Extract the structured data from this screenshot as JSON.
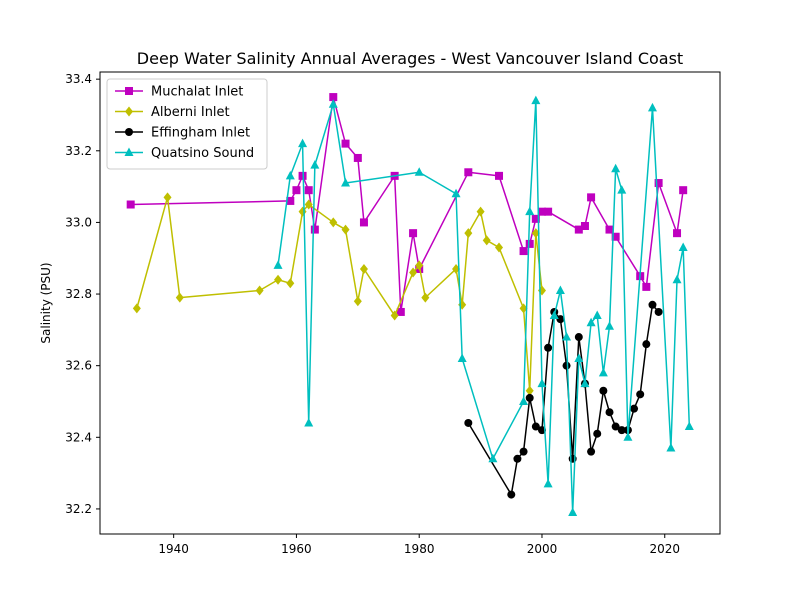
{
  "chart_data": {
    "type": "line",
    "title": "Deep Water Salinity Annual Averages - West Vancouver Island Coast",
    "xlabel": "",
    "ylabel": "Salinity (PSU)",
    "xlim": [
      1928,
      2029
    ],
    "ylim": [
      32.13,
      33.42
    ],
    "xticks": [
      1940,
      1960,
      1980,
      2000,
      2020
    ],
    "yticks": [
      32.2,
      32.4,
      32.6,
      32.8,
      33.0,
      33.2,
      33.4
    ],
    "ytick_labels": [
      "32.2",
      "32.4",
      "32.6",
      "32.8",
      "33.0",
      "33.2",
      "33.4"
    ],
    "grid": false,
    "legend_position": "top-left",
    "series": [
      {
        "name": "Muchalat Inlet",
        "color": "#bf00bf",
        "marker": "square",
        "x": [
          1933,
          1959,
          1960,
          1961,
          1962,
          1963,
          1966,
          1968,
          1970,
          1971,
          1976,
          1977,
          1979,
          1980,
          1988,
          1993,
          1997,
          1998,
          1999,
          2000,
          2001,
          2006,
          2007,
          2008,
          2011,
          2012,
          2016,
          2017,
          2019,
          2022,
          2023
        ],
        "y": [
          33.05,
          33.06,
          33.09,
          33.13,
          33.09,
          32.98,
          33.35,
          33.22,
          33.18,
          33.0,
          33.13,
          32.75,
          32.97,
          32.87,
          33.14,
          33.13,
          32.92,
          32.94,
          33.01,
          33.03,
          33.03,
          32.98,
          32.99,
          33.07,
          32.98,
          32.96,
          32.85,
          32.82,
          33.11,
          32.97,
          33.09
        ]
      },
      {
        "name": "Alberni Inlet",
        "color": "#bfbf00",
        "marker": "diamond",
        "x": [
          1934,
          1939,
          1941,
          1954,
          1957,
          1959,
          1961,
          1962,
          1966,
          1968,
          1970,
          1971,
          1976,
          1979,
          1980,
          1981,
          1986,
          1987,
          1988,
          1990,
          1991,
          1993,
          1997,
          1998,
          1999,
          2000
        ],
        "y": [
          32.76,
          33.07,
          32.79,
          32.81,
          32.84,
          32.83,
          33.03,
          33.05,
          33.0,
          32.98,
          32.78,
          32.87,
          32.74,
          32.86,
          32.88,
          32.79,
          32.87,
          32.77,
          32.97,
          33.03,
          32.95,
          32.93,
          32.76,
          32.53,
          32.97,
          32.81
        ]
      },
      {
        "name": "Effingham Inlet",
        "color": "#000000",
        "marker": "circle",
        "x": [
          1988,
          1995,
          1996,
          1997,
          1998,
          1999,
          2000,
          2001,
          2002,
          2003,
          2004,
          2005,
          2006,
          2007,
          2008,
          2009,
          2010,
          2011,
          2012,
          2013,
          2014,
          2015,
          2016,
          2017,
          2018,
          2019
        ],
        "y": [
          32.44,
          32.24,
          32.34,
          32.36,
          32.51,
          32.43,
          32.42,
          32.65,
          32.75,
          32.73,
          32.6,
          32.34,
          32.68,
          32.55,
          32.36,
          32.41,
          32.53,
          32.47,
          32.43,
          32.42,
          32.42,
          32.48,
          32.52,
          32.66,
          32.77,
          32.75
        ]
      },
      {
        "name": "Quatsino Sound",
        "color": "#00bfbf",
        "marker": "triangle",
        "x": [
          1957,
          1959,
          1961,
          1962,
          1963,
          1966,
          1968,
          1980,
          1986,
          1987,
          1992,
          1997,
          1998,
          1999,
          2000,
          2001,
          2002,
          2003,
          2004,
          2005,
          2006,
          2007,
          2008,
          2009,
          2010,
          2011,
          2012,
          2013,
          2014,
          2018,
          2021,
          2022,
          2023,
          2024
        ],
        "y": [
          32.88,
          33.13,
          33.22,
          32.44,
          33.16,
          33.33,
          33.11,
          33.14,
          33.08,
          32.62,
          32.34,
          32.5,
          33.03,
          33.34,
          32.55,
          32.27,
          32.74,
          32.81,
          32.68,
          32.19,
          32.62,
          32.55,
          32.72,
          32.74,
          32.58,
          32.71,
          33.15,
          33.09,
          32.4,
          33.32,
          32.37,
          32.84,
          32.93,
          32.43
        ]
      }
    ]
  }
}
